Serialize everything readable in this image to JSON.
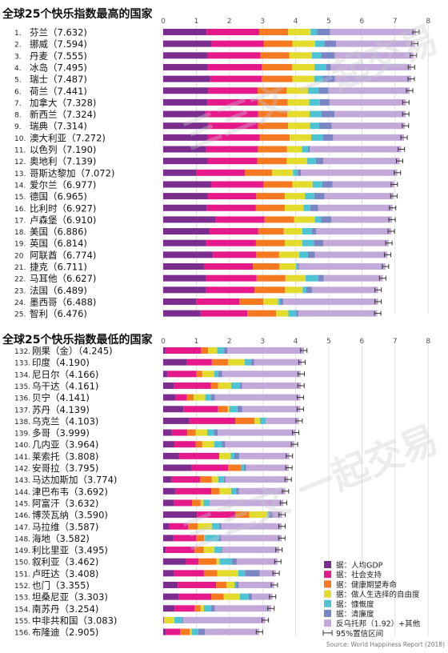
{
  "chart_data": [
    {
      "type": "bar",
      "stacked": true,
      "orientation": "horizontal",
      "title": "全球25个快乐指数最高的国家",
      "xlim": [
        0,
        8
      ],
      "x_ticks": [
        "0",
        "1",
        "2",
        "3",
        "4",
        "5",
        "6",
        "7",
        "8"
      ],
      "grid": true,
      "rows": [
        {
          "rank": "1.",
          "label": "芬兰（7.632)",
          "score": 7.632,
          "parts": [
            1.31,
            1.59,
            0.87,
            0.68,
            0.2,
            0.39,
            2.59
          ]
        },
        {
          "rank": "2.",
          "label": "挪威（7.594)",
          "score": 7.594,
          "parts": [
            1.46,
            1.58,
            0.86,
            0.69,
            0.29,
            0.34,
            2.38
          ]
        },
        {
          "rank": "3.",
          "label": "丹麦（7.555)",
          "score": 7.555,
          "parts": [
            1.35,
            1.59,
            0.87,
            0.68,
            0.28,
            0.41,
            2.38
          ]
        },
        {
          "rank": "4.",
          "label": "冰岛（7.495)",
          "score": 7.495,
          "parts": [
            1.34,
            1.64,
            0.91,
            0.68,
            0.35,
            0.14,
            2.43
          ]
        },
        {
          "rank": "5.",
          "label": "瑞士（7.487)",
          "score": 7.487,
          "parts": [
            1.42,
            1.55,
            0.93,
            0.66,
            0.26,
            0.36,
            2.31
          ]
        },
        {
          "rank": "6.",
          "label": "荷兰（7.441)",
          "score": 7.441,
          "parts": [
            1.36,
            1.49,
            0.88,
            0.64,
            0.33,
            0.29,
            2.45
          ]
        },
        {
          "rank": "7.",
          "label": "加拿大（7.328)",
          "score": 7.328,
          "parts": [
            1.33,
            1.53,
            0.9,
            0.65,
            0.32,
            0.29,
            2.31
          ]
        },
        {
          "rank": "8.",
          "label": "新西兰（7.324)",
          "score": 7.324,
          "parts": [
            1.27,
            1.6,
            0.88,
            0.67,
            0.36,
            0.39,
            2.15
          ]
        },
        {
          "rank": "9.",
          "label": "瑞典（7.314)",
          "score": 7.314,
          "parts": [
            1.36,
            1.5,
            0.91,
            0.66,
            0.28,
            0.38,
            2.21
          ]
        },
        {
          "rank": "10.",
          "label": "澳大利亚（7.272)",
          "score": 7.272,
          "parts": [
            1.34,
            1.57,
            0.91,
            0.65,
            0.36,
            0.3,
            2.14
          ]
        },
        {
          "rank": "11.",
          "label": "以色列（7.190)",
          "score": 7.19,
          "parts": [
            1.3,
            1.56,
            0.88,
            0.45,
            0.18,
            0.06,
            2.76
          ]
        },
        {
          "rank": "12.",
          "label": "奥地利（7.139)",
          "score": 7.139,
          "parts": [
            1.34,
            1.5,
            0.89,
            0.62,
            0.26,
            0.22,
            2.31
          ]
        },
        {
          "rank": "13.",
          "label": "哥斯达黎加（7.072)",
          "score": 7.072,
          "parts": [
            1.01,
            1.46,
            0.82,
            0.63,
            0.14,
            0.1,
            2.91
          ]
        },
        {
          "rank": "14.",
          "label": "爱尔兰（6.977)",
          "score": 6.977,
          "parts": [
            1.45,
            1.58,
            0.87,
            0.61,
            0.29,
            0.31,
            1.87
          ]
        },
        {
          "rank": "15.",
          "label": "德国（6.965)",
          "score": 6.965,
          "parts": [
            1.34,
            1.47,
            0.86,
            0.61,
            0.28,
            0.31,
            2.09
          ]
        },
        {
          "rank": "16.",
          "label": "比利时（6.927)",
          "score": 6.927,
          "parts": [
            1.32,
            1.48,
            0.87,
            0.57,
            0.2,
            0.24,
            2.25
          ]
        },
        {
          "rank": "17.",
          "label": "卢森堡（6.910)",
          "score": 6.91,
          "parts": [
            1.58,
            1.48,
            0.89,
            0.63,
            0.18,
            0.32,
            1.83
          ]
        },
        {
          "rank": "18.",
          "label": "美国（6.886)",
          "score": 6.886,
          "parts": [
            1.4,
            1.47,
            0.77,
            0.56,
            0.29,
            0.13,
            2.27
          ]
        },
        {
          "rank": "19.",
          "label": "英国（6.814)",
          "score": 6.814,
          "parts": [
            1.3,
            1.5,
            0.87,
            0.53,
            0.35,
            0.28,
            1.98
          ]
        },
        {
          "rank": "20",
          "label": "阿联酋（6.774)",
          "score": 6.774,
          "parts": [
            1.5,
            1.31,
            0.69,
            0.61,
            0.26,
            0.21,
            2.19
          ]
        },
        {
          "rank": "21.",
          "label": "捷克（6.711)",
          "score": 6.711,
          "parts": [
            1.23,
            1.48,
            0.8,
            0.5,
            0.05,
            0.04,
            2.61
          ]
        },
        {
          "rank": "22.",
          "label": "马耳他（6.627)",
          "score": 6.627,
          "parts": [
            1.3,
            1.52,
            0.87,
            0.61,
            0.38,
            0.17,
            1.78
          ]
        },
        {
          "rank": "23.",
          "label": "法国（6.489)",
          "score": 6.489,
          "parts": [
            1.29,
            1.47,
            0.92,
            0.53,
            0.11,
            0.18,
            1.99
          ]
        },
        {
          "rank": "24.",
          "label": "墨西哥（6.488)",
          "score": 6.488,
          "parts": [
            0.99,
            1.31,
            0.72,
            0.45,
            0.07,
            0.08,
            2.87
          ]
        },
        {
          "rank": "25.",
          "label": "智利（6.476)",
          "score": 6.476,
          "parts": [
            1.13,
            1.41,
            0.87,
            0.37,
            0.24,
            0.06,
            2.38
          ]
        }
      ]
    },
    {
      "type": "bar",
      "stacked": true,
      "orientation": "horizontal",
      "title": "全球25个快乐指数最低的国家",
      "xlim": [
        0,
        8
      ],
      "x_ticks": [
        "0",
        "1",
        "2",
        "3",
        "4",
        "5",
        "6",
        "7",
        "8"
      ],
      "grid": true,
      "rows": [
        {
          "rank": "132.",
          "label": "刚果（金）（4.245)",
          "score": 4.245,
          "parts": [
            0.07,
            1.07,
            0.22,
            0.27,
            0.21,
            0.1,
            2.31
          ]
        },
        {
          "rank": "133.",
          "label": "印度（4.190)",
          "score": 4.19,
          "parts": [
            0.72,
            0.75,
            0.49,
            0.5,
            0.2,
            0.09,
            1.43
          ]
        },
        {
          "rank": "134.",
          "label": "尼日尔（4.166)",
          "score": 4.166,
          "parts": [
            0.13,
            0.87,
            0.18,
            0.36,
            0.12,
            0.12,
            2.37
          ]
        },
        {
          "rank": "135.",
          "label": "乌干达（4.161)",
          "score": 4.161,
          "parts": [
            0.33,
            1.11,
            0.22,
            0.39,
            0.27,
            0.06,
            1.78
          ]
        },
        {
          "rank": "136.",
          "label": "贝宁（4.141)",
          "score": 4.141,
          "parts": [
            0.38,
            0.33,
            0.21,
            0.35,
            0.18,
            0.11,
            2.58
          ]
        },
        {
          "rank": "137.",
          "label": "苏丹（4.139)",
          "score": 4.139,
          "parts": [
            0.61,
            1.05,
            0.29,
            0.05,
            0.24,
            0.14,
            1.76
          ]
        },
        {
          "rank": "138.",
          "label": "乌克兰（4.103)",
          "score": 4.103,
          "parts": [
            0.79,
            1.39,
            0.58,
            0.16,
            0.18,
            0.01,
            0.99
          ]
        },
        {
          "rank": "139.",
          "label": "多哥（3.999)",
          "score": 3.999,
          "parts": [
            0.26,
            0.47,
            0.25,
            0.35,
            0.2,
            0.12,
            2.35
          ]
        },
        {
          "rank": "140.",
          "label": "几内亚（3.964)",
          "score": 3.964,
          "parts": [
            0.34,
            0.64,
            0.2,
            0.36,
            0.23,
            0.1,
            2.09
          ]
        },
        {
          "rank": "141.",
          "label": "莱索托（3.808)",
          "score": 3.808,
          "parts": [
            0.47,
            1.22,
            0.0,
            0.35,
            0.11,
            0.15,
            1.51
          ]
        },
        {
          "rank": "142.",
          "label": "安哥拉（3.795)",
          "score": 3.795,
          "parts": [
            0.86,
            1.1,
            0.4,
            0.0,
            0.08,
            0.06,
            1.29
          ]
        },
        {
          "rank": "143.",
          "label": "马达加斯加（3.774)",
          "score": 3.774,
          "parts": [
            0.26,
            0.86,
            0.35,
            0.19,
            0.17,
            0.05,
            1.89
          ]
        },
        {
          "rank": "144.",
          "label": "津巴布韦（3.692)",
          "score": 3.692,
          "parts": [
            0.36,
            1.09,
            0.25,
            0.35,
            0.16,
            0.08,
            1.4
          ]
        },
        {
          "rank": "145.",
          "label": "阿富汗（3.632)",
          "score": 3.632,
          "parts": [
            0.33,
            0.54,
            0.26,
            0.09,
            0.19,
            0.0,
            2.22
          ]
        },
        {
          "rank": "146.",
          "label": "博茨瓦纳（3.590)",
          "score": 3.59,
          "parts": [
            1.02,
            1.16,
            0.42,
            0.55,
            0.04,
            0.11,
            0.29
          ]
        },
        {
          "rank": "147.",
          "label": "马拉维（3.587)",
          "score": 3.587,
          "parts": [
            0.19,
            0.56,
            0.29,
            0.43,
            0.23,
            0.06,
            1.82
          ]
        },
        {
          "rank": "148.",
          "label": "海地（3.582)",
          "score": 3.582,
          "parts": [
            0.31,
            0.69,
            0.24,
            0.02,
            0.42,
            0.08,
            1.82
          ]
        },
        {
          "rank": "149.",
          "label": "利比里亚（3.495)",
          "score": 3.495,
          "parts": [
            0.08,
            0.86,
            0.28,
            0.33,
            0.2,
            0.03,
            1.72
          ]
        },
        {
          "rank": "150.",
          "label": "叙利亚（3.462)",
          "score": 3.462,
          "parts": [
            0.69,
            0.38,
            0.54,
            0.09,
            0.38,
            0.14,
            1.23
          ]
        },
        {
          "rank": "151.",
          "label": "卢旺达（3.408)",
          "score": 3.408,
          "parts": [
            0.33,
            0.9,
            0.4,
            0.64,
            0.2,
            0.44,
            0.49
          ]
        },
        {
          "rank": "152.",
          "label": "也门（3.355)",
          "score": 3.355,
          "parts": [
            0.44,
            1.16,
            0.31,
            0.24,
            0.06,
            0.07,
            1.07
          ]
        },
        {
          "rank": "153.",
          "label": "坦桑尼亚（3.303)",
          "score": 3.303,
          "parts": [
            0.46,
            0.99,
            0.38,
            0.48,
            0.27,
            0.1,
            0.62
          ]
        },
        {
          "rank": "154.",
          "label": "南苏丹（3.254)",
          "score": 3.254,
          "parts": [
            0.34,
            0.61,
            0.18,
            0.1,
            0.22,
            0.11,
            1.7
          ]
        },
        {
          "rank": "155.",
          "label": "中非共和国（3.083)",
          "score": 3.083,
          "parts": [
            0.02,
            0.0,
            0.01,
            0.31,
            0.22,
            0.04,
            2.48
          ]
        },
        {
          "rank": "156.",
          "label": "布隆迪（2.905)",
          "score": 2.905,
          "parts": [
            0.09,
            0.42,
            0.29,
            0.06,
            0.2,
            0.2,
            1.64
          ]
        }
      ]
    }
  ],
  "legend": [
    {
      "label": "据：人均GDP",
      "color": "#7b2d8e"
    },
    {
      "label": "据：社会支持",
      "color": "#e6198a"
    },
    {
      "label": "据：健康期望寿命",
      "color": "#f47920"
    },
    {
      "label": "据：做人生选择的自由度",
      "color": "#e4dc2c"
    },
    {
      "label": "据：慷慨度",
      "color": "#4ec3d3"
    },
    {
      "label": "据：清廉度",
      "color": "#7a86c4"
    },
    {
      "label": "反乌托邦（1.92）+其他",
      "color": "#c3a9d9"
    },
    {
      "label": "95%置信区间",
      "color": "#333333"
    }
  ],
  "source": "Source: World Happiness Report (2018)",
  "watermark": "三三文  一起交易"
}
